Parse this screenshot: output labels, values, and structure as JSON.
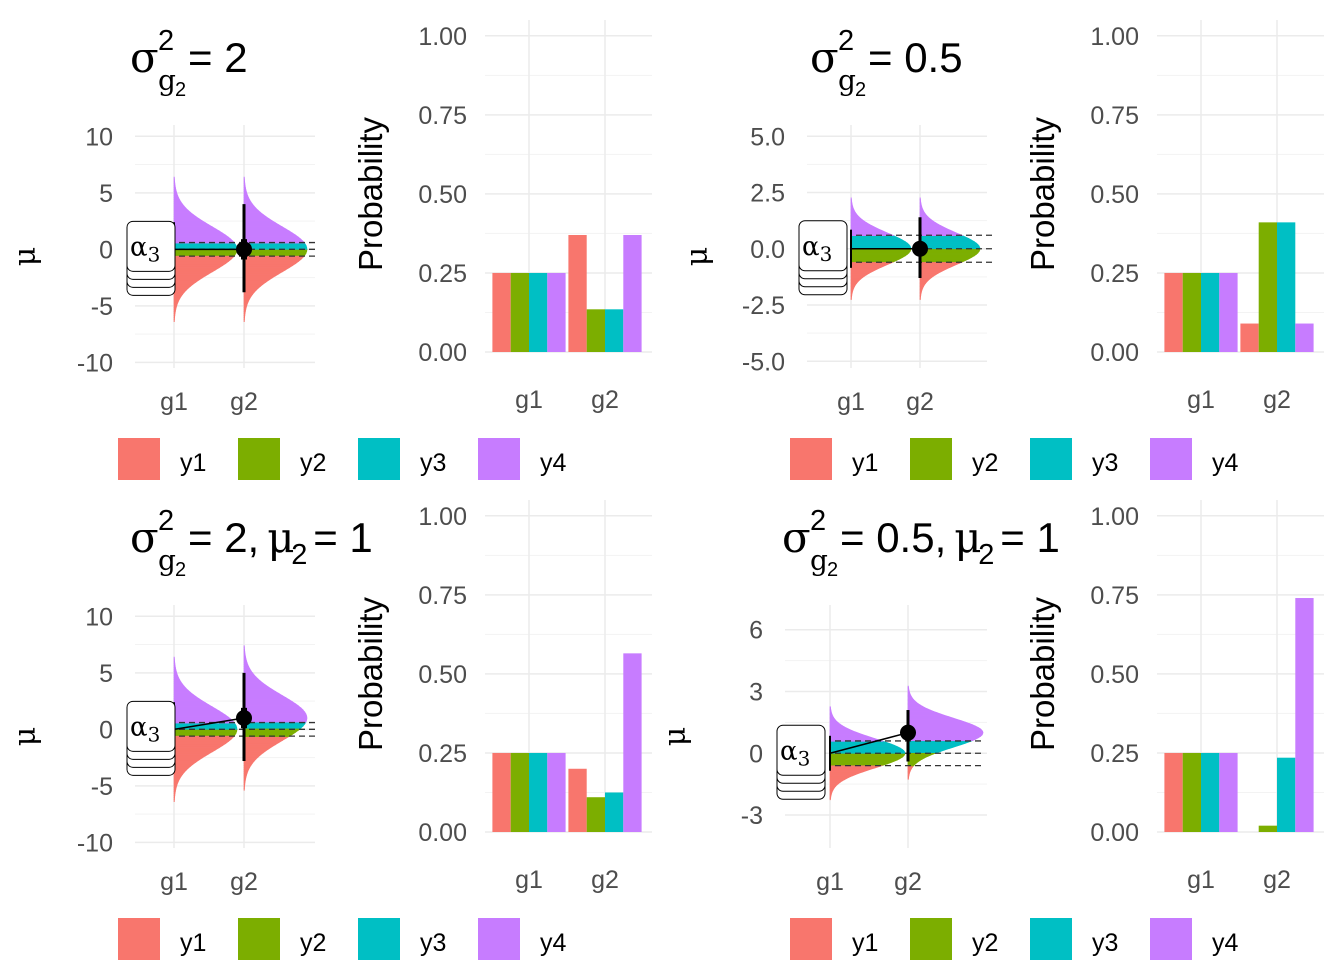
{
  "colors": {
    "y1": "#F8766D",
    "y2": "#7CAE00",
    "y3": "#00BFC4",
    "y4": "#C77CFF",
    "grid": "#ebebeb",
    "tick_text": "#4d4d4d"
  },
  "legend": {
    "labels": [
      "y1",
      "y2",
      "y3",
      "y4"
    ]
  },
  "mu_axis_label": "μ",
  "prob_axis_label": "Probability",
  "alpha_label": "α₃",
  "alpha_subscript": "3",
  "chart_data": [
    {
      "type": "area",
      "panel": "top-left-mu",
      "title": {
        "sigma": "σ",
        "sup": "2",
        "sub_g": "g",
        "sub_n": "2",
        "rest": " = 2",
        "mu_part": ""
      },
      "categories": [
        "g1",
        "g2"
      ],
      "ylim": [
        -10.5,
        11
      ],
      "yticks": [
        -10,
        -5,
        0,
        5,
        10
      ],
      "ylabel": "μ",
      "sd": 2.0,
      "means": [
        0,
        0
      ],
      "thresholds": [
        -0.6,
        0,
        0.6
      ],
      "spread": 63,
      "errorbar_g2": {
        "lo": -3.8,
        "hi": 4.0
      },
      "grid": true
    },
    {
      "type": "bar",
      "panel": "top-left-prob",
      "categories": [
        "g1",
        "g2"
      ],
      "ylim": [
        0,
        1.05
      ],
      "yticks": [
        0,
        0.25,
        0.5,
        0.75,
        1.0
      ],
      "ytick_labels": [
        "0.00",
        "0.25",
        "0.50",
        "0.75",
        "1.00"
      ],
      "ylabel": "Probability",
      "series": [
        {
          "name": "y1",
          "values": [
            0.25,
            0.37
          ]
        },
        {
          "name": "y2",
          "values": [
            0.25,
            0.135
          ]
        },
        {
          "name": "y3",
          "values": [
            0.25,
            0.135
          ]
        },
        {
          "name": "y4",
          "values": [
            0.25,
            0.37
          ]
        }
      ],
      "grid": true
    },
    {
      "type": "area",
      "panel": "top-right-mu",
      "title": {
        "sigma": "σ",
        "sup": "2",
        "sub_g": "g",
        "sub_n": "2",
        "rest": " = 0.5",
        "mu_part": ""
      },
      "categories": [
        "g1",
        "g2"
      ],
      "ylim": [
        -5.3,
        5.5
      ],
      "yticks": [
        -5,
        -2.5,
        0,
        2.5,
        5
      ],
      "ytick_labels": [
        "-5.0",
        "-2.5",
        "0.0",
        "2.5",
        "5.0"
      ],
      "ylabel": "μ",
      "sd": 0.707,
      "means": [
        0,
        0
      ],
      "thresholds": [
        -0.6,
        0,
        0.6
      ],
      "spread": 60,
      "errorbar_g2": {
        "lo": -1.3,
        "hi": 1.4
      },
      "grid": true
    },
    {
      "type": "bar",
      "panel": "top-right-prob",
      "categories": [
        "g1",
        "g2"
      ],
      "ylim": [
        0,
        1.05
      ],
      "yticks": [
        0,
        0.25,
        0.5,
        0.75,
        1.0
      ],
      "ytick_labels": [
        "0.00",
        "0.25",
        "0.50",
        "0.75",
        "1.00"
      ],
      "ylabel": "Probability",
      "series": [
        {
          "name": "y1",
          "values": [
            0.25,
            0.09
          ]
        },
        {
          "name": "y2",
          "values": [
            0.25,
            0.41
          ]
        },
        {
          "name": "y3",
          "values": [
            0.25,
            0.41
          ]
        },
        {
          "name": "y4",
          "values": [
            0.25,
            0.09
          ]
        }
      ],
      "grid": true
    },
    {
      "type": "area",
      "panel": "bottom-left-mu",
      "title": {
        "sigma": "σ",
        "sup": "2",
        "sub_g": "g",
        "sub_n": "2",
        "rest": " = 2, ",
        "mu_part": "μ",
        "mu_sub": "2",
        "mu_rest": " = 1"
      },
      "categories": [
        "g1",
        "g2"
      ],
      "ylim": [
        -10.5,
        11
      ],
      "yticks": [
        -10,
        -5,
        0,
        5,
        10
      ],
      "ylabel": "μ",
      "sd": 2.0,
      "means": [
        0,
        1
      ],
      "thresholds": [
        -0.6,
        0,
        0.6
      ],
      "spread": 63,
      "errorbar_g2": {
        "lo": -2.8,
        "hi": 5.0
      },
      "grid": true
    },
    {
      "type": "bar",
      "panel": "bottom-left-prob",
      "categories": [
        "g1",
        "g2"
      ],
      "ylim": [
        0,
        1.05
      ],
      "yticks": [
        0,
        0.25,
        0.5,
        0.75,
        1.0
      ],
      "ytick_labels": [
        "0.00",
        "0.25",
        "0.50",
        "0.75",
        "1.00"
      ],
      "ylabel": "Probability",
      "series": [
        {
          "name": "y1",
          "values": [
            0.25,
            0.2
          ]
        },
        {
          "name": "y2",
          "values": [
            0.25,
            0.11
          ]
        },
        {
          "name": "y3",
          "values": [
            0.25,
            0.125
          ]
        },
        {
          "name": "y4",
          "values": [
            0.25,
            0.565
          ]
        }
      ],
      "grid": true
    },
    {
      "type": "area",
      "panel": "bottom-right-mu",
      "title": {
        "sigma": "σ",
        "sup": "2",
        "sub_g": "g",
        "sub_n": "2",
        "rest": " = 0.5, ",
        "mu_part": "μ",
        "mu_sub": "2",
        "mu_rest": " = 1"
      },
      "categories": [
        "g1",
        "g2"
      ],
      "ylim": [
        -4.6,
        7.2
      ],
      "yticks": [
        -3,
        0,
        3,
        6
      ],
      "ylabel": "μ",
      "sd": 0.707,
      "means": [
        0,
        1
      ],
      "thresholds": [
        -0.6,
        0,
        0.6
      ],
      "spread": 75,
      "errorbar_g2": {
        "lo": -0.4,
        "hi": 2.1
      },
      "grid": true
    },
    {
      "type": "bar",
      "panel": "bottom-right-prob",
      "categories": [
        "g1",
        "g2"
      ],
      "ylim": [
        0,
        1.05
      ],
      "yticks": [
        0,
        0.25,
        0.5,
        0.75,
        1.0
      ],
      "ytick_labels": [
        "0.00",
        "0.25",
        "0.50",
        "0.75",
        "1.00"
      ],
      "ylabel": "Probability",
      "series": [
        {
          "name": "y1",
          "values": [
            0.25,
            0.0
          ]
        },
        {
          "name": "y2",
          "values": [
            0.25,
            0.02
          ]
        },
        {
          "name": "y3",
          "values": [
            0.25,
            0.235
          ]
        },
        {
          "name": "y4",
          "values": [
            0.25,
            0.74
          ]
        }
      ],
      "grid": true
    }
  ]
}
